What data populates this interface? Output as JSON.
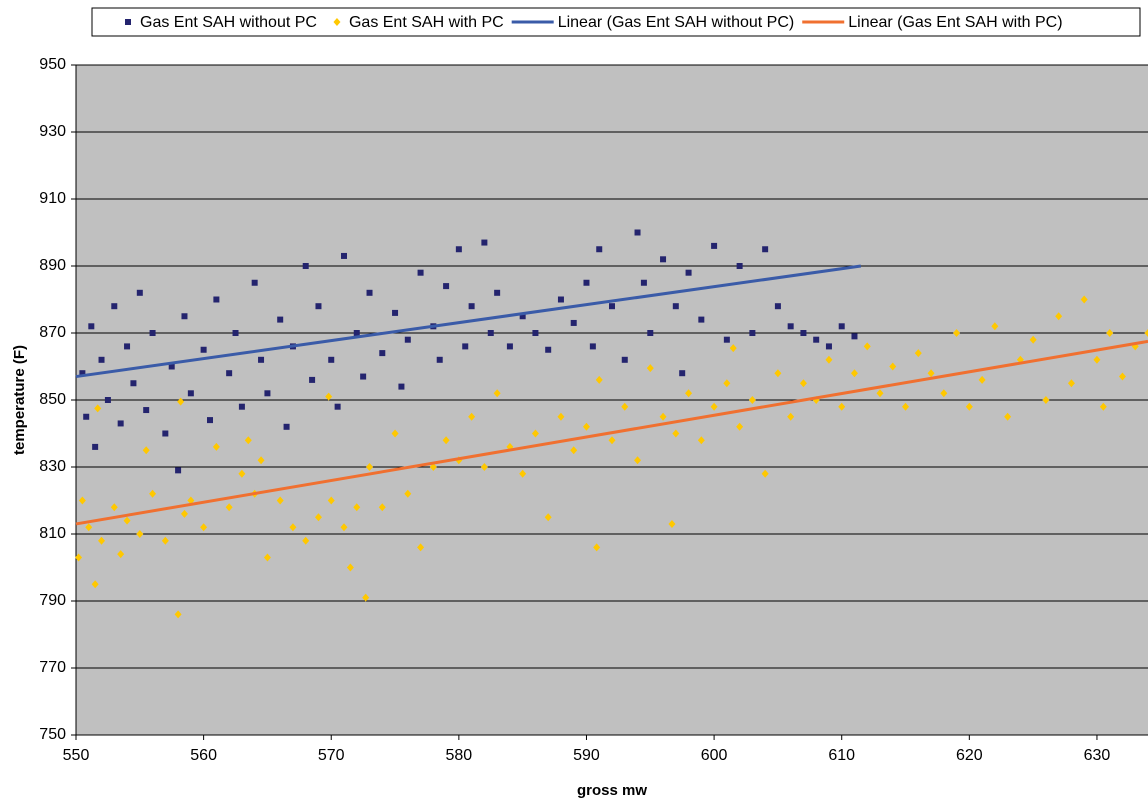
{
  "chart_data": {
    "type": "scatter",
    "xlabel": "gross mw",
    "ylabel": "temperature (F)",
    "xlim": [
      550,
      634
    ],
    "ylim": [
      750,
      950
    ],
    "xticks": [
      550,
      560,
      570,
      580,
      590,
      600,
      610,
      620,
      630
    ],
    "yticks": [
      750,
      770,
      790,
      810,
      830,
      850,
      870,
      890,
      910,
      930,
      950
    ],
    "grid": true,
    "legend": "top",
    "series": [
      {
        "name": "Gas Ent SAH without PC",
        "color": "#24246e",
        "marker": "square",
        "x": [
          550.5,
          550.8,
          551.2,
          551.5,
          552,
          552.5,
          553,
          553.5,
          554,
          554.5,
          555,
          555.5,
          556,
          557,
          557.5,
          558,
          558.5,
          559,
          560,
          560.5,
          561,
          562,
          562.5,
          563,
          564,
          564.5,
          565,
          566,
          566.5,
          567,
          568,
          568.5,
          569,
          570,
          570.5,
          571,
          572,
          572.5,
          573,
          574,
          575,
          575.5,
          576,
          577,
          578,
          578.5,
          579,
          580,
          580.5,
          581,
          582,
          582.5,
          583,
          584,
          585,
          586,
          587,
          588,
          589,
          590,
          590.5,
          591,
          592,
          593,
          594,
          594.5,
          595,
          596,
          597,
          597.5,
          598,
          599,
          600,
          601,
          602,
          603,
          604,
          605,
          606,
          607,
          608,
          609,
          610,
          611
        ],
        "values": [
          858,
          845,
          872,
          836,
          862,
          850,
          878,
          843,
          866,
          855,
          882,
          847,
          870,
          840,
          860,
          829,
          875,
          852,
          865,
          844,
          880,
          858,
          870,
          848,
          885,
          862,
          852,
          874,
          842,
          866,
          890,
          856,
          878,
          862,
          848,
          893,
          870,
          857,
          882,
          864,
          876,
          854,
          868,
          888,
          872,
          862,
          884,
          895,
          866,
          878,
          897,
          870,
          882,
          866,
          875,
          870,
          865,
          880,
          873,
          885,
          866,
          895,
          878,
          862,
          900,
          885,
          870,
          892,
          878,
          858,
          888,
          874,
          896,
          868,
          890,
          870,
          895,
          878,
          872,
          870,
          868,
          866,
          872,
          869
        ]
      },
      {
        "name": "Gas Ent SAH with PC",
        "color": "#ffc800",
        "marker": "diamond",
        "x": [
          550.2,
          550.5,
          551,
          551.5,
          551.7,
          552,
          553,
          553.5,
          554,
          555,
          555.5,
          556,
          557,
          558,
          558.2,
          558.5,
          559,
          560,
          561,
          562,
          563,
          563.5,
          564,
          564.5,
          565,
          566,
          567,
          568,
          569,
          569.8,
          570,
          571,
          571.5,
          572,
          572.7,
          573,
          574,
          575,
          576,
          577,
          578,
          579,
          580,
          581,
          582,
          583,
          584,
          585,
          586,
          587,
          588,
          589,
          590,
          590.8,
          591,
          592,
          593,
          594,
          595,
          596,
          596.7,
          597,
          598,
          599,
          600,
          601,
          601.5,
          602,
          603,
          604,
          605,
          606,
          607,
          608,
          609,
          610,
          611,
          612,
          613,
          614,
          615,
          616,
          617,
          618,
          619,
          620,
          621,
          622,
          623,
          624,
          625,
          626,
          627,
          628,
          629,
          630,
          630.5,
          631,
          632,
          633,
          634
        ],
        "values": [
          803,
          820,
          812,
          795,
          847.5,
          808,
          818,
          804,
          814,
          810,
          835,
          822,
          808,
          786,
          849.5,
          816,
          820,
          812,
          836,
          818,
          828,
          838,
          822,
          832,
          803,
          820,
          812,
          808,
          815,
          851,
          820,
          812,
          800,
          818,
          791,
          830,
          818,
          840,
          822,
          806,
          830,
          838,
          832,
          845,
          830,
          852,
          836,
          828,
          840,
          815,
          845,
          835,
          842,
          806,
          856,
          838,
          848,
          832,
          859.5,
          845,
          813,
          840,
          852,
          838,
          848,
          855,
          865.5,
          842,
          850,
          828,
          858,
          845,
          855,
          850,
          862,
          848,
          858,
          866,
          852,
          860,
          848,
          864,
          858,
          852,
          870,
          848,
          856,
          872,
          845,
          862,
          868,
          850,
          875,
          855,
          880,
          862,
          848,
          870,
          857,
          866,
          870
        ]
      },
      {
        "name": "Linear (Gas Ent SAH without PC)",
        "color": "#3a5ba8",
        "type": "line",
        "x": [
          550,
          611.5
        ],
        "values": [
          857,
          890
        ]
      },
      {
        "name": "Linear (Gas Ent SAH with PC)",
        "color": "#f07030",
        "type": "line",
        "x": [
          550,
          634
        ],
        "values": [
          813,
          867.5
        ]
      }
    ]
  }
}
